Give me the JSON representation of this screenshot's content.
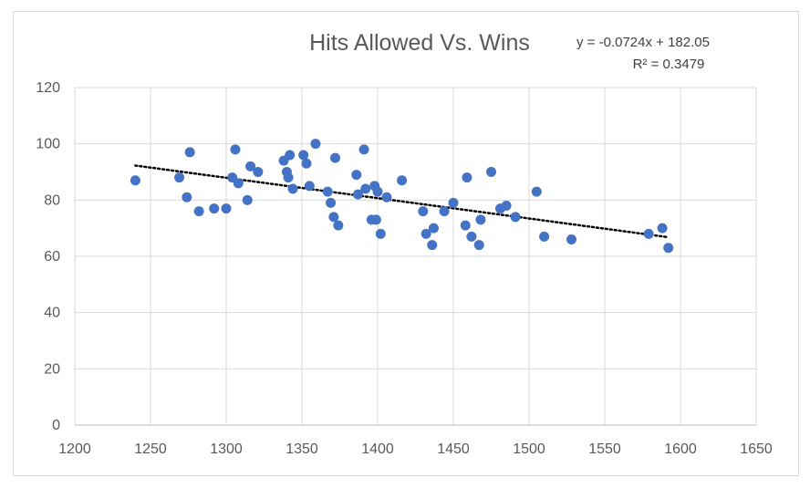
{
  "chart_data": {
    "type": "scatter",
    "title": "Hits Allowed Vs. Wins",
    "xlabel": "",
    "ylabel": "",
    "xlim": [
      1200,
      1650
    ],
    "ylim": [
      0,
      120
    ],
    "x_ticks": [
      1200,
      1250,
      1300,
      1350,
      1400,
      1450,
      1500,
      1550,
      1600,
      1650
    ],
    "y_ticks": [
      0,
      20,
      40,
      60,
      80,
      100,
      120
    ],
    "grid": true,
    "legend": "none",
    "marker_color": "#4472c4",
    "trendline": {
      "type": "linear",
      "slope": -0.0724,
      "intercept": 182.05,
      "x_range": [
        1240,
        1592
      ],
      "equation": "y = -0.0724x + 182.05",
      "r_squared": "R² = 0.3479",
      "style": "dotted",
      "color": "#000000"
    },
    "points": [
      {
        "x": 1240,
        "y": 87
      },
      {
        "x": 1269,
        "y": 88
      },
      {
        "x": 1274,
        "y": 81
      },
      {
        "x": 1276,
        "y": 97
      },
      {
        "x": 1282,
        "y": 76
      },
      {
        "x": 1292,
        "y": 77
      },
      {
        "x": 1300,
        "y": 77
      },
      {
        "x": 1304,
        "y": 88
      },
      {
        "x": 1306,
        "y": 98
      },
      {
        "x": 1308,
        "y": 86
      },
      {
        "x": 1314,
        "y": 80
      },
      {
        "x": 1316,
        "y": 92
      },
      {
        "x": 1321,
        "y": 90
      },
      {
        "x": 1338,
        "y": 94
      },
      {
        "x": 1340,
        "y": 90
      },
      {
        "x": 1341,
        "y": 88
      },
      {
        "x": 1342,
        "y": 96
      },
      {
        "x": 1344,
        "y": 84
      },
      {
        "x": 1351,
        "y": 96
      },
      {
        "x": 1353,
        "y": 93
      },
      {
        "x": 1355,
        "y": 85
      },
      {
        "x": 1359,
        "y": 100
      },
      {
        "x": 1367,
        "y": 83
      },
      {
        "x": 1369,
        "y": 79
      },
      {
        "x": 1371,
        "y": 74
      },
      {
        "x": 1372,
        "y": 95
      },
      {
        "x": 1374,
        "y": 71
      },
      {
        "x": 1386,
        "y": 89
      },
      {
        "x": 1387,
        "y": 82
      },
      {
        "x": 1391,
        "y": 98
      },
      {
        "x": 1392,
        "y": 84
      },
      {
        "x": 1396,
        "y": 73
      },
      {
        "x": 1398,
        "y": 85
      },
      {
        "x": 1399,
        "y": 73
      },
      {
        "x": 1400,
        "y": 83
      },
      {
        "x": 1402,
        "y": 68
      },
      {
        "x": 1406,
        "y": 81
      },
      {
        "x": 1416,
        "y": 87
      },
      {
        "x": 1430,
        "y": 76
      },
      {
        "x": 1432,
        "y": 68
      },
      {
        "x": 1436,
        "y": 64
      },
      {
        "x": 1437,
        "y": 70
      },
      {
        "x": 1444,
        "y": 76
      },
      {
        "x": 1450,
        "y": 79
      },
      {
        "x": 1458,
        "y": 71
      },
      {
        "x": 1459,
        "y": 88
      },
      {
        "x": 1462,
        "y": 67
      },
      {
        "x": 1467,
        "y": 64
      },
      {
        "x": 1468,
        "y": 73
      },
      {
        "x": 1475,
        "y": 90
      },
      {
        "x": 1481,
        "y": 77
      },
      {
        "x": 1485,
        "y": 78
      },
      {
        "x": 1491,
        "y": 74
      },
      {
        "x": 1505,
        "y": 83
      },
      {
        "x": 1510,
        "y": 67
      },
      {
        "x": 1528,
        "y": 66
      },
      {
        "x": 1579,
        "y": 68
      },
      {
        "x": 1588,
        "y": 70
      },
      {
        "x": 1592,
        "y": 63
      }
    ]
  }
}
